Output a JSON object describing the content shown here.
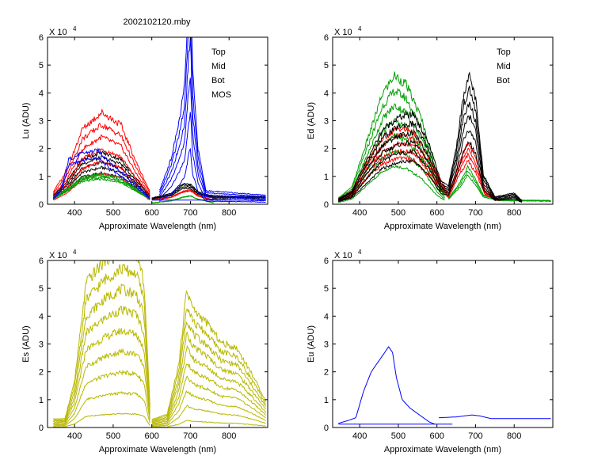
{
  "figure_title": "2002102120.mby",
  "chart_data": [
    {
      "id": "lu",
      "type": "line",
      "ylabel": "Lu (ADU)",
      "xlabel": "Approximate Wavelength (nm)",
      "exponent_label": "X 10",
      "exponent": "4",
      "xlim": [
        330,
        900
      ],
      "ylim": [
        0,
        6
      ],
      "xticks": [
        400,
        500,
        600,
        700,
        800
      ],
      "yticks": [
        0,
        1,
        2,
        3,
        4,
        5,
        6
      ],
      "legend": [
        "Top",
        "Mid",
        "Bot",
        "MOS"
      ],
      "series": [
        {
          "name": "Top",
          "color": "#000000",
          "x": [
            345,
            380,
            420,
            470,
            520,
            560,
            595
          ],
          "y": [
            0.25,
            0.65,
            1.3,
            1.5,
            1.3,
            0.75,
            0.25
          ],
          "copies": 5,
          "spread": 0.12
        },
        {
          "name": "Top",
          "color": "#000000",
          "x": [
            600,
            650,
            680,
            700,
            720,
            760,
            895
          ],
          "y": [
            0.2,
            0.35,
            0.65,
            0.65,
            0.4,
            0.25,
            0.25
          ],
          "copies": 4,
          "spread": 0.08
        },
        {
          "name": "Mid",
          "color": "#ff0000",
          "x": [
            345,
            380,
            420,
            470,
            520,
            560,
            595
          ],
          "y": [
            0.3,
            0.8,
            1.8,
            2.2,
            1.9,
            1.0,
            0.3
          ],
          "copies": 6,
          "spread": 0.2
        },
        {
          "name": "Mid",
          "color": "#ff0000",
          "x": [
            600,
            650,
            680,
            700,
            720,
            760
          ],
          "y": [
            0.15,
            0.25,
            0.45,
            0.5,
            0.3,
            0.15
          ],
          "copies": 3,
          "spread": 0.05
        },
        {
          "name": "Bot",
          "color": "#00a000",
          "x": [
            345,
            380,
            420,
            470,
            520,
            560,
            595
          ],
          "y": [
            0.2,
            0.5,
            0.9,
            1.0,
            0.85,
            0.5,
            0.2
          ],
          "copies": 4,
          "spread": 0.06
        },
        {
          "name": "Bot",
          "color": "#00a000",
          "x": [
            600,
            650,
            680,
            700,
            720,
            760
          ],
          "y": [
            0.05,
            0.12,
            0.25,
            0.3,
            0.18,
            0.05
          ],
          "copies": 2,
          "spread": 0.04
        },
        {
          "name": "MOS",
          "color": "#0000ff",
          "x": [
            345,
            365,
            385,
            420,
            460,
            500,
            540,
            580,
            595
          ],
          "y": [
            0.2,
            0.5,
            1.5,
            1.7,
            1.8,
            1.3,
            0.9,
            0.4,
            0.2
          ],
          "copies": 2,
          "spread": 0.15
        },
        {
          "name": "MOS",
          "color": "#0000ff",
          "x": [
            620,
            650,
            670,
            685,
            695,
            700,
            705,
            720,
            740,
            895
          ],
          "y": [
            0.3,
            1.0,
            1.8,
            2.6,
            4.6,
            5.4,
            3.0,
            1.2,
            0.3,
            0.2
          ],
          "copies": 6,
          "spread": 0.25
        },
        {
          "name": "MOS",
          "color": "#0000ff",
          "x": [
            600,
            895
          ],
          "y": [
            0.15,
            0.15
          ],
          "copies": 1,
          "spread": 0
        }
      ]
    },
    {
      "id": "ed",
      "type": "line",
      "ylabel": "Ed  (ADU)",
      "xlabel": "Approximate Wavelength (nm)",
      "exponent_label": "X 10",
      "exponent": "4",
      "xlim": [
        330,
        900
      ],
      "ylim": [
        0,
        6
      ],
      "xticks": [
        400,
        500,
        600,
        700,
        800
      ],
      "yticks": [
        0,
        1,
        2,
        3,
        4,
        5,
        6
      ],
      "legend": [
        "Top",
        "Mid",
        "Bot"
      ],
      "series": [
        {
          "name": "Bot",
          "color": "#00a000",
          "x": [
            345,
            380,
            420,
            460,
            490,
            520,
            560,
            600,
            620
          ],
          "y": [
            0.15,
            0.4,
            1.5,
            2.6,
            3.0,
            2.8,
            2.0,
            0.7,
            0.3
          ],
          "copies": 7,
          "spread": 0.18
        },
        {
          "name": "Bot",
          "color": "#00a000",
          "x": [
            630,
            660,
            680,
            700,
            720,
            760,
            895
          ],
          "y": [
            0.2,
            0.7,
            1.2,
            0.8,
            0.3,
            0.15,
            0.12
          ],
          "copies": 3,
          "spread": 0.12
        },
        {
          "name": "Mid",
          "color": "#ff0000",
          "x": [
            345,
            380,
            420,
            460,
            500,
            540,
            580,
            620,
            630
          ],
          "y": [
            0.15,
            0.4,
            1.3,
            1.9,
            2.2,
            2.1,
            1.3,
            0.5,
            0.3
          ],
          "copies": 5,
          "spread": 0.12
        },
        {
          "name": "Mid",
          "color": "#ff0000",
          "x": [
            630,
            655,
            680,
            700,
            725,
            760
          ],
          "y": [
            0.3,
            1.2,
            1.9,
            1.4,
            0.4,
            0.15
          ],
          "copies": 4,
          "spread": 0.12
        },
        {
          "name": "Top",
          "color": "#000000",
          "x": [
            345,
            380,
            420,
            460,
            500,
            540,
            580,
            610,
            630,
            650,
            670,
            685,
            700,
            720,
            750,
            800,
            820
          ],
          "y": [
            0.15,
            0.35,
            1.2,
            2.0,
            2.3,
            2.4,
            1.6,
            0.6,
            0.5,
            1.5,
            3.0,
            3.4,
            2.8,
            0.8,
            0.2,
            0.3,
            0.1
          ],
          "copies": 6,
          "spread": 0.14
        }
      ]
    },
    {
      "id": "es",
      "type": "line",
      "ylabel": "Es  (ADU)",
      "xlabel": "Approximate Wavelength (nm)",
      "exponent_label": "X 10",
      "exponent": "4",
      "xlim": [
        330,
        900
      ],
      "ylim": [
        0,
        6
      ],
      "xticks": [
        400,
        500,
        600,
        700,
        800
      ],
      "yticks": [
        0,
        1,
        2,
        3,
        4,
        5,
        6
      ],
      "legend": [],
      "series": [
        {
          "name": "Es",
          "color": "#b8b800",
          "x": [
            345,
            375,
            400,
            430,
            480,
            520,
            560,
            580,
            595
          ],
          "y": [
            0.15,
            0.15,
            0.8,
            2.5,
            2.9,
            3.1,
            3.0,
            2.5,
            0.4
          ],
          "copies": 10,
          "spread": 0.24
        },
        {
          "name": "Es",
          "color": "#b8b800",
          "x": [
            600,
            640,
            670,
            690,
            710,
            740,
            780,
            820,
            860,
            895
          ],
          "y": [
            0.15,
            0.25,
            1.2,
            2.6,
            2.2,
            2.0,
            1.6,
            1.5,
            1.0,
            0.5
          ],
          "copies": 10,
          "spread": 0.2
        }
      ]
    },
    {
      "id": "eu",
      "type": "line",
      "ylabel": "Eu  (ADU)",
      "xlabel": "Approximate Wavelength (nm)",
      "exponent_label": "X 10",
      "exponent": "4",
      "xlim": [
        330,
        900
      ],
      "ylim": [
        0,
        6
      ],
      "xticks": [
        400,
        500,
        600,
        700,
        800
      ],
      "yticks": [
        0,
        1,
        2,
        3,
        4,
        5,
        6
      ],
      "legend": [],
      "series": [
        {
          "name": "Eu",
          "color": "#0000ff",
          "x": [
            345,
            370,
            390,
            410,
            430,
            460,
            475,
            485,
            495,
            510,
            530,
            560,
            580,
            595
          ],
          "y": [
            0.15,
            0.25,
            0.35,
            1.3,
            2.0,
            2.6,
            2.9,
            2.7,
            1.8,
            1.0,
            0.7,
            0.4,
            0.2,
            0.12
          ],
          "copies": 1,
          "spread": 0
        },
        {
          "name": "Eu",
          "color": "#0000ff",
          "x": [
            345,
            640
          ],
          "y": [
            0.12,
            0.12
          ],
          "copies": 1,
          "spread": 0
        },
        {
          "name": "Eu",
          "color": "#0000ff",
          "x": [
            605,
            650,
            690,
            710,
            740,
            895
          ],
          "y": [
            0.35,
            0.38,
            0.45,
            0.42,
            0.32,
            0.32
          ],
          "copies": 1,
          "spread": 0
        }
      ]
    }
  ]
}
